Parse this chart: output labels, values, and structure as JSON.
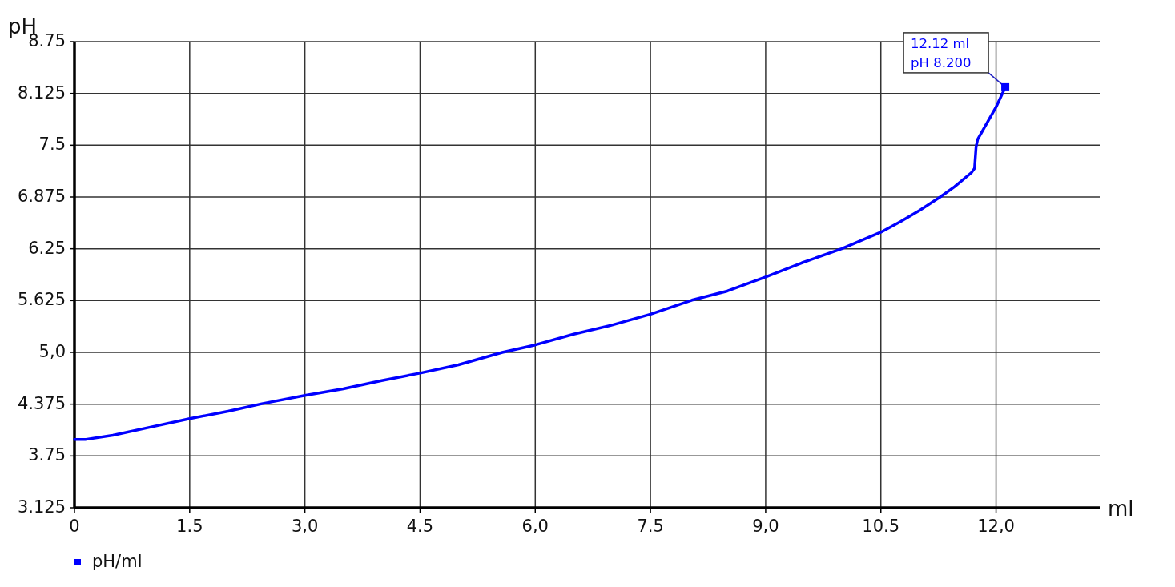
{
  "chart_data": {
    "type": "line",
    "xlabel": "ml",
    "ylabel": "pH",
    "xlim": [
      0,
      13.35
    ],
    "ylim": [
      3.125,
      8.75
    ],
    "xticks": [
      0,
      1.5,
      {
        "value": 3,
        "label": "3,0"
      },
      4.5,
      {
        "value": 6,
        "label": "6,0"
      },
      7.5,
      {
        "value": 9,
        "label": "9,0"
      },
      10.5,
      {
        "value": 12,
        "label": "12,0"
      }
    ],
    "yticks": [
      3.125,
      3.75,
      4.375,
      {
        "value": 5,
        "label": "5,0"
      },
      5.625,
      6.25,
      6.875,
      7.5,
      8.125,
      8.75
    ],
    "grid": true,
    "legend": "bottom left",
    "series": [
      {
        "name": "pH/ml",
        "color": "#0000ff",
        "x": [
          0,
          0.15,
          0.5,
          1.0,
          1.5,
          2.0,
          2.44,
          3.0,
          3.5,
          4.0,
          4.5,
          5.0,
          5.57,
          6.0,
          6.5,
          7.0,
          7.5,
          8.04,
          8.5,
          9.0,
          9.47,
          9.99,
          10.5,
          10.76,
          11.0,
          11.28,
          11.46,
          11.68,
          11.72,
          11.74,
          11.76,
          12.0,
          12.12
        ],
        "values": [
          3.95,
          3.95,
          4.0,
          4.1,
          4.2,
          4.29,
          4.38,
          4.48,
          4.56,
          4.66,
          4.75,
          4.85,
          5.0,
          5.09,
          5.22,
          5.33,
          5.46,
          5.63,
          5.74,
          5.91,
          6.08,
          6.25,
          6.45,
          6.58,
          6.71,
          6.88,
          7.0,
          7.17,
          7.22,
          7.48,
          7.57,
          7.96,
          8.2
        ]
      }
    ],
    "annotations": [
      {
        "text": "12.12 ml\npH 8.200",
        "x": 12.12,
        "y": 8.2
      }
    ]
  }
}
